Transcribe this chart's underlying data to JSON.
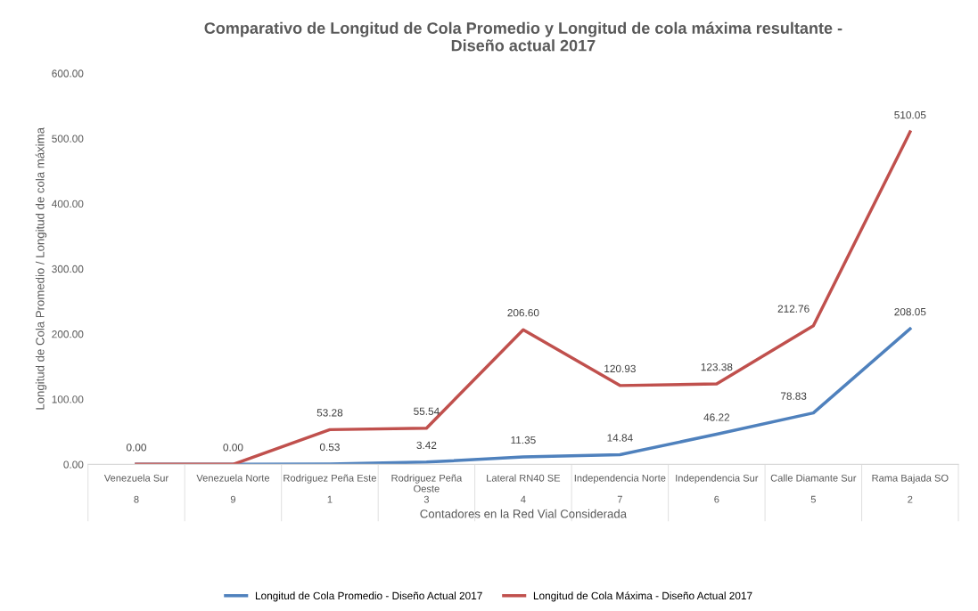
{
  "chart_data": {
    "type": "line",
    "title": "Comparativo de Longitud de Cola Promedio y Longitud de cola máxima resultante -\nDiseño actual 2017",
    "xlabel": "Contadores en la Red Vial Considerada",
    "ylabel": "Longitud de Cola Promedio / Longitud de cola máxima",
    "categories": [
      "Venezuela Sur\n\n8",
      "Venezuela Norte\n\n9",
      "Rodriguez Peña Este\n\n1",
      "Rodriguez Peña\nOeste\n3",
      "Lateral RN40 SE\n\n4",
      "Independencia Norte\n\n7",
      "Independencia Sur\n\n6",
      "Calle Diamante Sur\n\n5",
      "Rama Bajada SO\n\n2"
    ],
    "series": [
      {
        "name": "Longitud de Cola Promedio - Diseño Actual 2017",
        "color": "#4f81bd",
        "values": [
          0,
          0,
          0.53,
          3.42,
          11.35,
          14.84,
          46.22,
          78.83,
          208.05
        ],
        "value_labels": [
          null,
          null,
          "0.53",
          "3.42",
          "11.35",
          "14.84",
          "46.22",
          "78.83",
          "208.05"
        ]
      },
      {
        "name": "Longitud de Cola Máxima - Diseño Actual 2017",
        "color": "#c0504d",
        "values": [
          0,
          0,
          53.28,
          55.54,
          206.6,
          120.93,
          123.38,
          212.76,
          510.05
        ],
        "value_labels": [
          "0.00",
          "0.00",
          "53.28",
          "55.54",
          "206.60",
          "120.93",
          "123.38",
          "212.76",
          "510.05"
        ]
      }
    ],
    "ylim": [
      0,
      600
    ],
    "yticks": [
      {
        "value": 0,
        "label": "0.00"
      },
      {
        "value": 100,
        "label": "100.00"
      },
      {
        "value": 200,
        "label": "200.00"
      },
      {
        "value": 300,
        "label": "300.00"
      },
      {
        "value": 400,
        "label": "400.00"
      },
      {
        "value": 500,
        "label": "500.00"
      },
      {
        "value": 600,
        "label": "600.00"
      }
    ],
    "legend": "bottom",
    "grid": false,
    "marker": "none",
    "line_style": "solid"
  }
}
